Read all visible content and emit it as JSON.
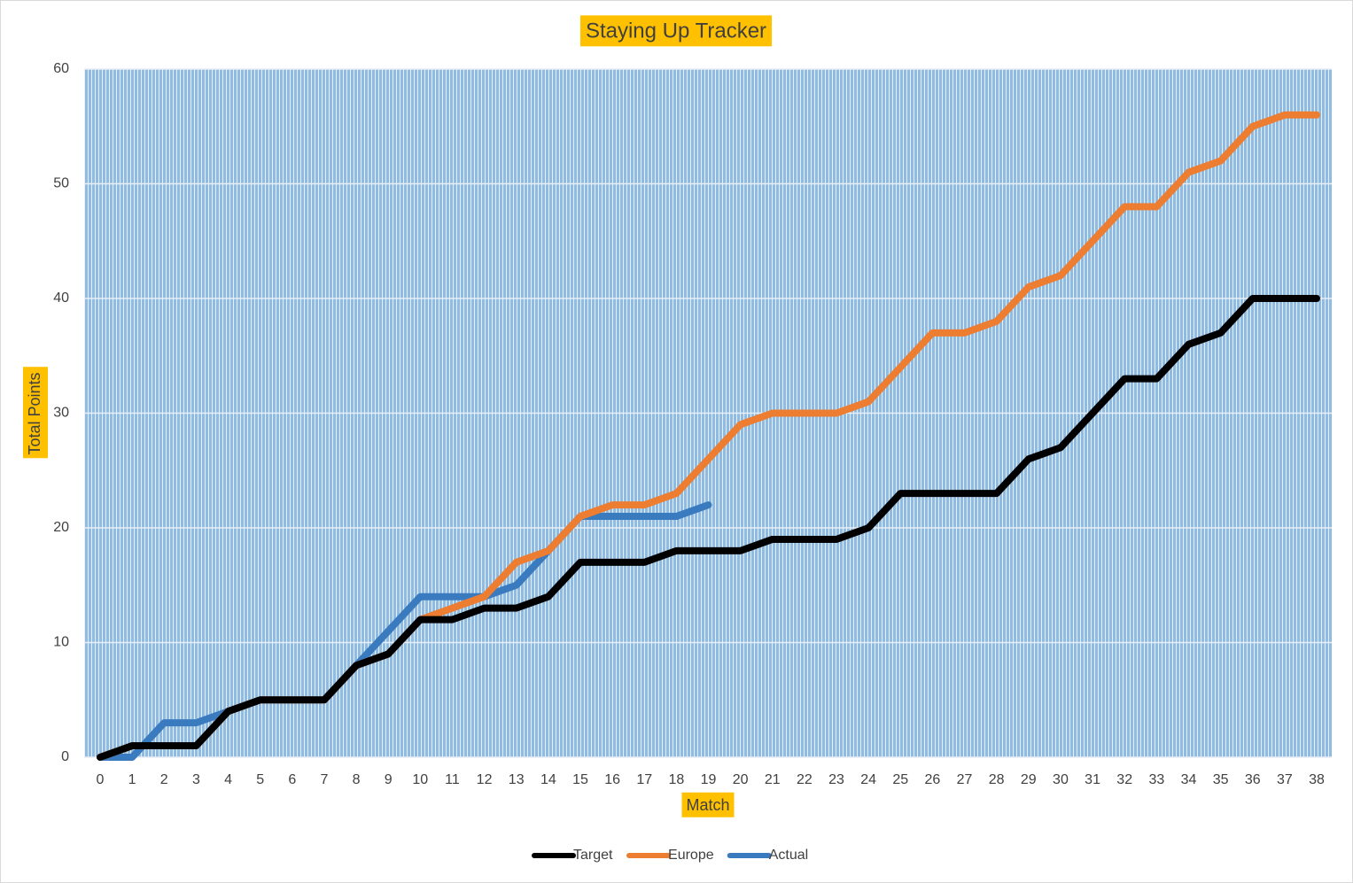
{
  "chart_data": {
    "type": "line",
    "title": "Staying Up Tracker",
    "x_label": "Match",
    "y_label": "Total Points",
    "categories": [
      "0",
      "1",
      "2",
      "3",
      "4",
      "5",
      "6",
      "7",
      "8",
      "9",
      "10",
      "11",
      "12",
      "13",
      "14",
      "15",
      "16",
      "17",
      "18",
      "19",
      "20",
      "21",
      "22",
      "23",
      "24",
      "25",
      "26",
      "27",
      "28",
      "29",
      "30",
      "31",
      "32",
      "33",
      "34",
      "35",
      "36",
      "37",
      "38"
    ],
    "series": [
      {
        "name": "Target",
        "color": "#000000",
        "values": [
          0,
          1,
          1,
          1,
          4,
          5,
          5,
          5,
          8,
          9,
          12,
          12,
          13,
          13,
          14,
          17,
          17,
          17,
          18,
          18,
          18,
          19,
          19,
          19,
          20,
          23,
          23,
          23,
          23,
          26,
          27,
          30,
          33,
          33,
          36,
          37,
          40,
          40,
          40
        ]
      },
      {
        "name": "Europe",
        "color": "#ed7d31",
        "values": [
          0,
          1,
          1,
          1,
          4,
          5,
          5,
          5,
          8,
          9,
          12,
          13,
          14,
          17,
          18,
          21,
          22,
          22,
          23,
          26,
          29,
          30,
          30,
          30,
          31,
          34,
          37,
          37,
          38,
          41,
          42,
          45,
          48,
          48,
          51,
          52,
          55,
          56,
          56
        ]
      },
      {
        "name": "Actual",
        "color": "#3a7bbf",
        "values": [
          0,
          0,
          3,
          3,
          4,
          5,
          5,
          5,
          8,
          11,
          14,
          14,
          14,
          15,
          18,
          21,
          21,
          21,
          21,
          22,
          null,
          null,
          null,
          null,
          null,
          null,
          null,
          null,
          null,
          null,
          null,
          null,
          null,
          null,
          null,
          null,
          null,
          null,
          null
        ]
      }
    ],
    "ylim": [
      0,
      60
    ],
    "yticks": [
      0,
      10,
      20,
      30,
      40,
      50,
      60
    ],
    "grid": true,
    "legend": "bottom"
  }
}
